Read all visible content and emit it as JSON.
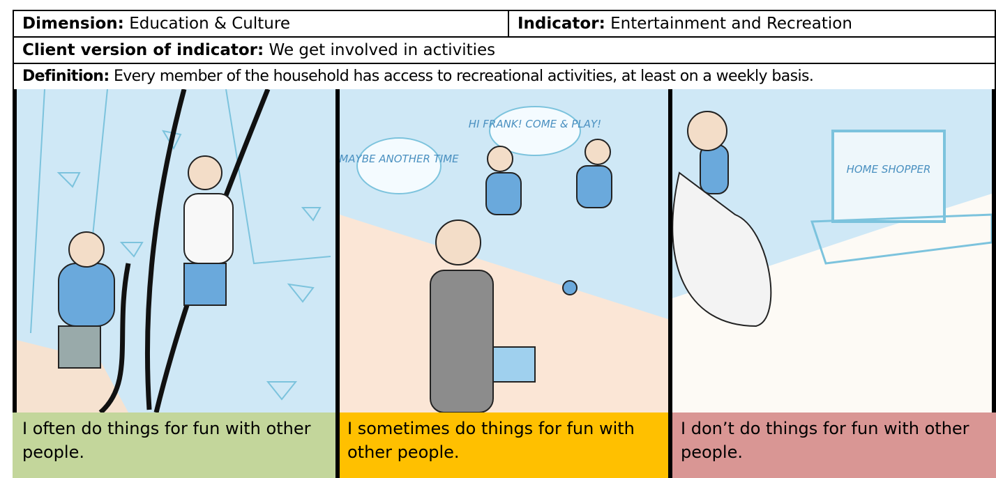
{
  "header": {
    "dimension": {
      "label": "Dimension:",
      "value": "Education & Culture"
    },
    "indicator": {
      "label": "Indicator:",
      "value": "Entertainment and Recreation"
    }
  },
  "client_version": {
    "label": "Client version of indicator:",
    "value": "We get involved in activities"
  },
  "definition": {
    "label": "Definition:",
    "value": "Every member of the household has access to recreational activities, at least on a weekly basis."
  },
  "panels": [
    {
      "caption": "I often do things for fun with other people."
    },
    {
      "caption": "I sometimes do things for fun with other people.",
      "illustration_texts": [
        "MAYBE ANOTHER TIME",
        "HI FRANK! COME & PLAY!"
      ]
    },
    {
      "caption": "I don’t do things for fun with other people.",
      "illustration_texts": [
        "HOME SHOPPER"
      ]
    }
  ]
}
